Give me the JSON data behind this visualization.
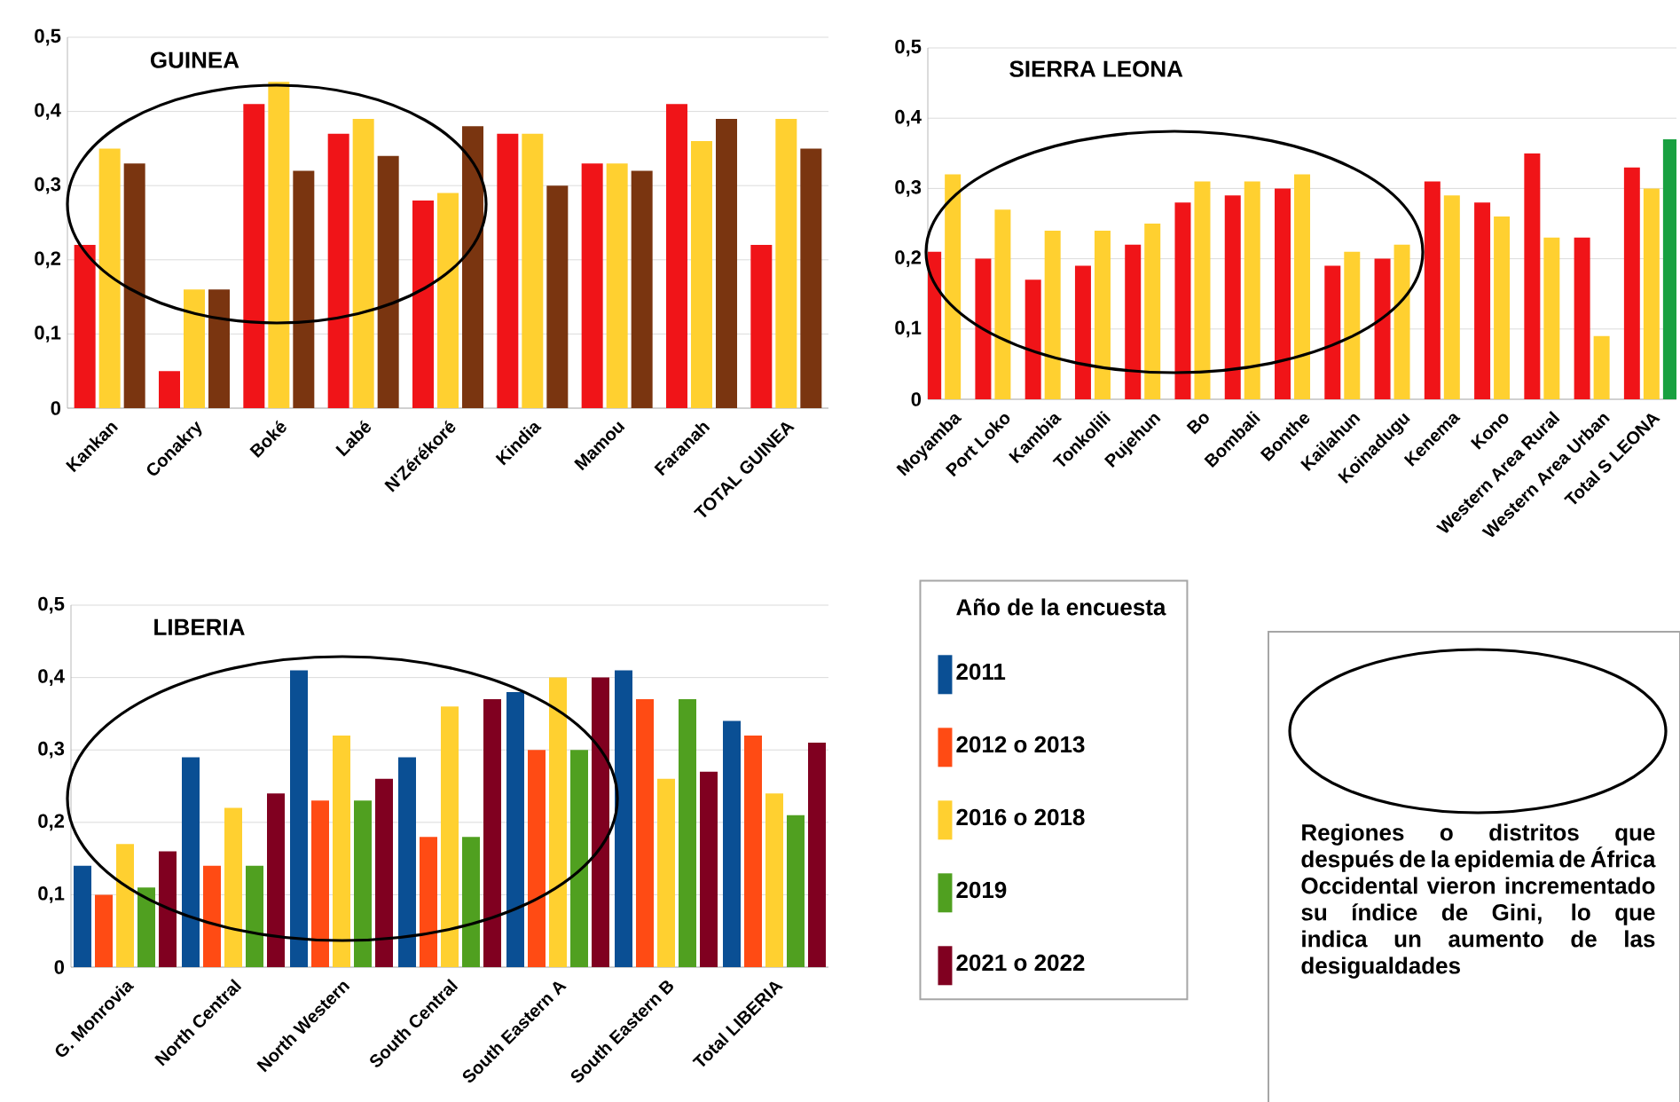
{
  "chart_data": [
    {
      "type": "bar",
      "title": "GUINEA",
      "categories": [
        "Kankan",
        "Conakry",
        "Boké",
        "Labé",
        "N'Zérékoré",
        "Kindia",
        "Mamou",
        "Faranah",
        "TOTAL GUINEA"
      ],
      "series": [
        {
          "color": "#f01418",
          "values": [
            0.22,
            0.05,
            0.41,
            0.37,
            0.28,
            0.37,
            0.33,
            0.41,
            0.22
          ]
        },
        {
          "color": "#ffd030",
          "values": [
            0.35,
            0.16,
            0.44,
            0.39,
            0.29,
            0.37,
            0.33,
            0.36,
            0.39
          ]
        },
        {
          "color": "#7a3510",
          "values": [
            0.33,
            0.16,
            0.32,
            0.34,
            0.38,
            0.3,
            0.32,
            0.39,
            0.35
          ]
        }
      ],
      "ylim": [
        0,
        0.5
      ],
      "yticks": [
        {
          "value": 0,
          "label": "0"
        },
        {
          "value": 0.1,
          "label": "0,1"
        },
        {
          "value": 0.2,
          "label": "0,2"
        },
        {
          "value": 0.3,
          "label": "0,3"
        },
        {
          "value": 0.4,
          "label": "0,4"
        },
        {
          "value": 0.5,
          "label": "0,5"
        }
      ],
      "grid": "y"
    },
    {
      "type": "bar",
      "title": "SIERRA LEONA",
      "categories": [
        "Moyamba",
        "Port Loko",
        "Kambia",
        "Tonkolili",
        "Pujehun",
        "Bo",
        "Bombali",
        "Bonthe",
        "Kailahun",
        "Koinadugu",
        "Kenema",
        "Kono",
        "Western Area Rural",
        "Western Area Urban",
        "Total S LEONA"
      ],
      "series": [
        {
          "color": "#f01418",
          "values": [
            0.21,
            0.2,
            0.17,
            0.19,
            0.22,
            0.28,
            0.29,
            0.3,
            0.19,
            0.2,
            0.31,
            0.28,
            0.35,
            0.23,
            0.33
          ]
        },
        {
          "color": "#ffd030",
          "values": [
            0.32,
            0.27,
            0.24,
            0.24,
            0.25,
            0.31,
            0.31,
            0.32,
            0.21,
            0.22,
            0.29,
            0.26,
            0.23,
            0.09,
            0.3
          ]
        },
        {
          "color": "#18a040",
          "values": [
            null,
            null,
            null,
            null,
            null,
            null,
            null,
            null,
            null,
            null,
            null,
            null,
            null,
            null,
            0.37
          ]
        }
      ],
      "ylim": [
        0,
        0.5
      ],
      "yticks": [
        {
          "value": 0,
          "label": "0"
        },
        {
          "value": 0.1,
          "label": "0,1"
        },
        {
          "value": 0.2,
          "label": "0,2"
        },
        {
          "value": 0.3,
          "label": "0,3"
        },
        {
          "value": 0.4,
          "label": "0,4"
        },
        {
          "value": 0.5,
          "label": "0,5"
        }
      ],
      "grid": "y"
    },
    {
      "type": "bar",
      "title": "LIBERIA",
      "categories": [
        "G. Monrovia",
        "North Central",
        "North Western",
        "South Central",
        "South Eastern A",
        "South Eastern B",
        "Total LIBERIA"
      ],
      "legend": "right",
      "legend_title": "Año de la encuesta",
      "series": [
        {
          "name": "2011",
          "color": "#0a4f94",
          "values": [
            0.14,
            0.29,
            0.41,
            0.29,
            0.38,
            0.41,
            0.34
          ]
        },
        {
          "name": "2012 o 2013",
          "color": "#ff4b14",
          "values": [
            0.1,
            0.14,
            0.23,
            0.18,
            0.3,
            0.37,
            0.32
          ]
        },
        {
          "name": "2016 o 2018",
          "color": "#ffd030",
          "values": [
            0.17,
            0.22,
            0.32,
            0.36,
            0.4,
            0.26,
            0.24
          ]
        },
        {
          "name": "2019",
          "color": "#50a020",
          "values": [
            0.11,
            0.14,
            0.23,
            0.18,
            0.3,
            0.37,
            0.21
          ]
        },
        {
          "name": "2021 o 2022",
          "color": "#800020",
          "values": [
            0.16,
            0.24,
            0.26,
            0.37,
            0.4,
            0.27,
            0.31
          ]
        }
      ],
      "ylim": [
        0,
        0.5
      ],
      "yticks": [
        {
          "value": 0,
          "label": "0"
        },
        {
          "value": 0.1,
          "label": "0,1"
        },
        {
          "value": 0.2,
          "label": "0,2"
        },
        {
          "value": 0.3,
          "label": "0,3"
        },
        {
          "value": 0.4,
          "label": "0,4"
        },
        {
          "value": 0.5,
          "label": "0,5"
        }
      ],
      "grid": "y"
    },
    {
      "type": "other",
      "annotations": [
        "Regiones o distritos que después de la epidemia de África Occidental vieron incrementado su índice de Gini, lo que indica un aumento de las desigualdades"
      ]
    }
  ]
}
